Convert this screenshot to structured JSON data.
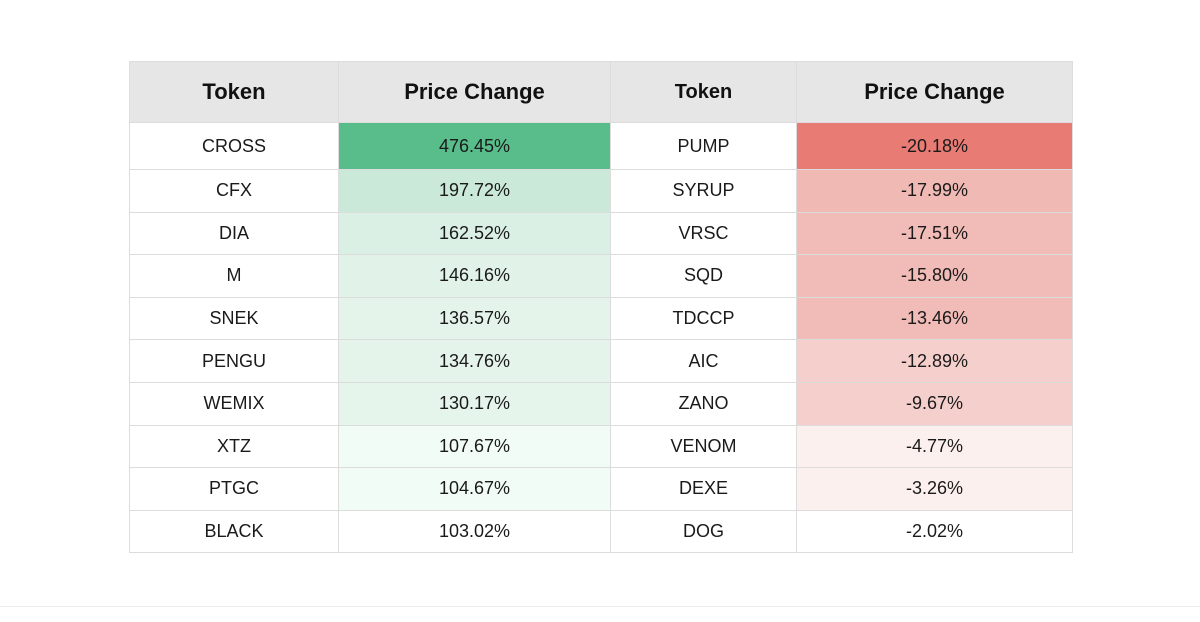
{
  "headers": {
    "left_token": "Token",
    "left_change": "Price Change",
    "right_token": "Token",
    "right_change": "Price Change"
  },
  "gainers": [
    {
      "token": "CROSS",
      "change": "476.45%",
      "color": "#58bd8a"
    },
    {
      "token": "CFX",
      "change": "197.72%",
      "color": "#cbe9d9"
    },
    {
      "token": "DIA",
      "change": "162.52%",
      "color": "#daf0e4"
    },
    {
      "token": "M",
      "change": "146.16%",
      "color": "#e1f3e9"
    },
    {
      "token": "SNEK",
      "change": "136.57%",
      "color": "#e4f4eb"
    },
    {
      "token": "PENGU",
      "change": "134.76%",
      "color": "#e4f4eb"
    },
    {
      "token": "WEMIX",
      "change": "130.17%",
      "color": "#e6f5ec"
    },
    {
      "token": "XTZ",
      "change": "107.67%",
      "color": "#f2fcf6"
    },
    {
      "token": "PTGC",
      "change": "104.67%",
      "color": "#f2fcf6"
    },
    {
      "token": "BLACK",
      "change": "103.02%",
      "color": "#ffffff"
    }
  ],
  "losers": [
    {
      "token": "PUMP",
      "change": "-20.18%",
      "color": "#e87b74"
    },
    {
      "token": "SYRUP",
      "change": "-17.99%",
      "color": "#f0b9b4"
    },
    {
      "token": "VRSC",
      "change": "-17.51%",
      "color": "#f1bcb7"
    },
    {
      "token": "SQD",
      "change": "-15.80%",
      "color": "#f1bcb7"
    },
    {
      "token": "TDCCP",
      "change": "-13.46%",
      "color": "#f1bcb7"
    },
    {
      "token": "AIC",
      "change": "-12.89%",
      "color": "#f5cfcb"
    },
    {
      "token": "ZANO",
      "change": "-9.67%",
      "color": "#f5cfcb"
    },
    {
      "token": "VENOM",
      "change": "-4.77%",
      "color": "#fcf0ee"
    },
    {
      "token": "DEXE",
      "change": "-3.26%",
      "color": "#fcf0ee"
    },
    {
      "token": "DOG",
      "change": "-2.02%",
      "color": "#ffffff"
    }
  ]
}
